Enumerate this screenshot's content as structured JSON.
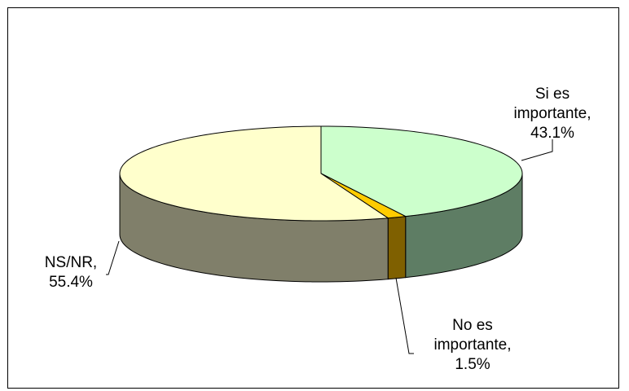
{
  "chart_data": {
    "type": "pie",
    "style": "3d-pie",
    "slices": [
      {
        "label_lines": [
          "Si es",
          "importante,",
          "43.1%"
        ],
        "value": 43.1,
        "top_color": "#CCFFCC",
        "side_color": "#5E7D64"
      },
      {
        "label_lines": [
          "No es",
          "importante,",
          "1.5%"
        ],
        "value": 1.5,
        "top_color": "#FFCC00",
        "side_color": "#7F6000"
      },
      {
        "label_lines": [
          "NS/NR,",
          "55.4%"
        ],
        "value": 55.4,
        "top_color": "#FFFFCC",
        "side_color": "#807F6A"
      }
    ],
    "legend": "none",
    "grid": false
  }
}
